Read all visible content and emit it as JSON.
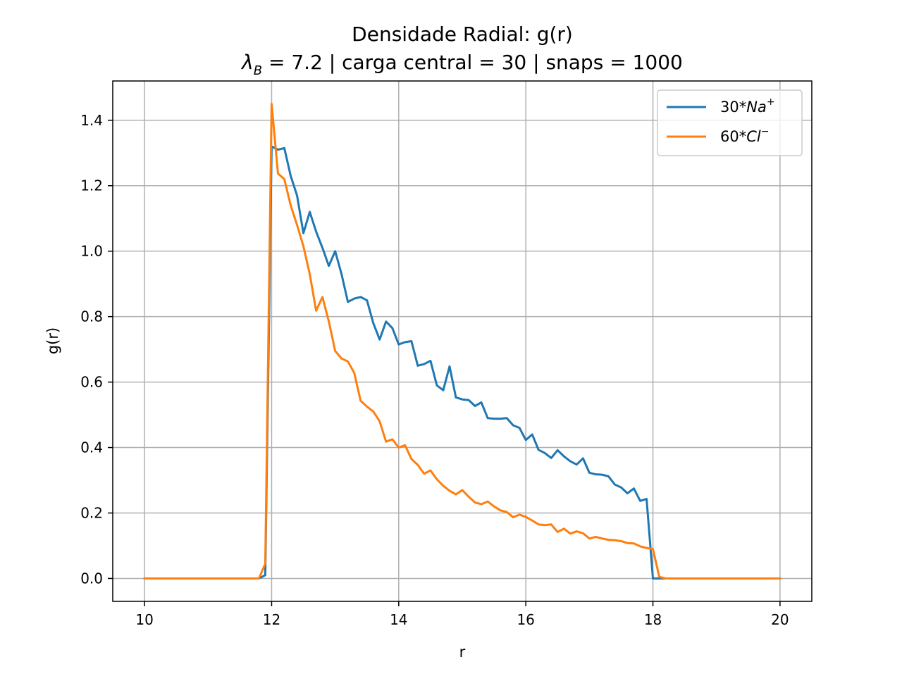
{
  "chart_data": {
    "type": "line",
    "title_line1": "Densidade Radial: g(r)",
    "title_line2_symbol": "λ",
    "title_line2_subscript": "B",
    "title_line2_rest": " = 7.2 | carga central = 30 | snaps = 1000",
    "xlabel": "r",
    "ylabel": "g(r)",
    "xlim": [
      9.5,
      20.5
    ],
    "ylim": [
      -0.07,
      1.52
    ],
    "xticks": [
      10,
      12,
      14,
      16,
      18,
      20
    ],
    "yticks": [
      0.0,
      0.2,
      0.4,
      0.6,
      0.8,
      1.0,
      1.2,
      1.4
    ],
    "xtick_labels": [
      "10",
      "12",
      "14",
      "16",
      "18",
      "20"
    ],
    "ytick_labels": [
      "0.0",
      "0.2",
      "0.4",
      "0.6",
      "0.8",
      "1.0",
      "1.2",
      "1.4"
    ],
    "grid": true,
    "legend_position": "top-right",
    "x": [
      10.0,
      10.1,
      10.2,
      10.3,
      10.4,
      10.5,
      10.6,
      10.7,
      10.8,
      10.9,
      11.0,
      11.1,
      11.2,
      11.3,
      11.4,
      11.5,
      11.6,
      11.7,
      11.8,
      11.9,
      12.0,
      12.1,
      12.2,
      12.3,
      12.4,
      12.5,
      12.6,
      12.7,
      12.8,
      12.9,
      13.0,
      13.1,
      13.2,
      13.3,
      13.4,
      13.5,
      13.6,
      13.7,
      13.8,
      13.9,
      14.0,
      14.1,
      14.2,
      14.3,
      14.4,
      14.5,
      14.6,
      14.7,
      14.8,
      14.9,
      15.0,
      15.1,
      15.2,
      15.3,
      15.4,
      15.5,
      15.6,
      15.7,
      15.8,
      15.9,
      16.0,
      16.1,
      16.2,
      16.3,
      16.4,
      16.5,
      16.6,
      16.7,
      16.8,
      16.9,
      17.0,
      17.1,
      17.2,
      17.3,
      17.4,
      17.5,
      17.6,
      17.7,
      17.8,
      17.9,
      18.0,
      18.1,
      18.2,
      18.3,
      18.4,
      18.5,
      18.6,
      18.7,
      18.8,
      18.9,
      19.0,
      19.1,
      19.2,
      19.3,
      19.4,
      19.5,
      19.6,
      19.7,
      19.8,
      19.9,
      20.0
    ],
    "series": [
      {
        "name_prefix": "30*",
        "name_base": "Na",
        "name_sup": "+",
        "color": "#1f77b4",
        "values": [
          0,
          0,
          0,
          0,
          0,
          0,
          0,
          0,
          0,
          0,
          0,
          0,
          0,
          0,
          0,
          0,
          0,
          0,
          0,
          0.01,
          1.32,
          1.31,
          1.315,
          1.23,
          1.17,
          1.055,
          1.12,
          1.06,
          1.01,
          0.955,
          1.0,
          0.93,
          0.845,
          0.855,
          0.86,
          0.85,
          0.78,
          0.73,
          0.785,
          0.765,
          0.715,
          0.722,
          0.725,
          0.65,
          0.655,
          0.665,
          0.59,
          0.575,
          0.648,
          0.553,
          0.547,
          0.545,
          0.527,
          0.538,
          0.49,
          0.488,
          0.488,
          0.49,
          0.468,
          0.46,
          0.423,
          0.44,
          0.393,
          0.383,
          0.368,
          0.392,
          0.373,
          0.358,
          0.348,
          0.367,
          0.323,
          0.318,
          0.317,
          0.312,
          0.287,
          0.278,
          0.26,
          0.275,
          0.237,
          0.243,
          0.0,
          0,
          0,
          0,
          0,
          0,
          0,
          0,
          0,
          0,
          0,
          0,
          0,
          0,
          0,
          0,
          0,
          0,
          0,
          0,
          0
        ]
      },
      {
        "name_prefix": "60*",
        "name_base": "Cl",
        "name_sup": "−",
        "color": "#ff7f0e",
        "values": [
          0,
          0,
          0,
          0,
          0,
          0,
          0,
          0,
          0,
          0,
          0,
          0,
          0,
          0,
          0,
          0,
          0,
          0,
          0,
          0.045,
          1.45,
          1.237,
          1.22,
          1.14,
          1.08,
          1.015,
          0.93,
          0.818,
          0.86,
          0.785,
          0.695,
          0.672,
          0.663,
          0.628,
          0.543,
          0.525,
          0.51,
          0.48,
          0.418,
          0.425,
          0.4,
          0.407,
          0.365,
          0.347,
          0.32,
          0.33,
          0.303,
          0.283,
          0.268,
          0.257,
          0.27,
          0.25,
          0.232,
          0.227,
          0.235,
          0.22,
          0.208,
          0.203,
          0.187,
          0.195,
          0.188,
          0.177,
          0.165,
          0.163,
          0.165,
          0.142,
          0.152,
          0.137,
          0.144,
          0.138,
          0.122,
          0.127,
          0.122,
          0.118,
          0.117,
          0.114,
          0.108,
          0.107,
          0.098,
          0.093,
          0.09,
          0.005,
          0,
          0,
          0,
          0,
          0,
          0,
          0,
          0,
          0,
          0,
          0,
          0,
          0,
          0,
          0,
          0,
          0,
          0,
          0
        ]
      }
    ]
  }
}
